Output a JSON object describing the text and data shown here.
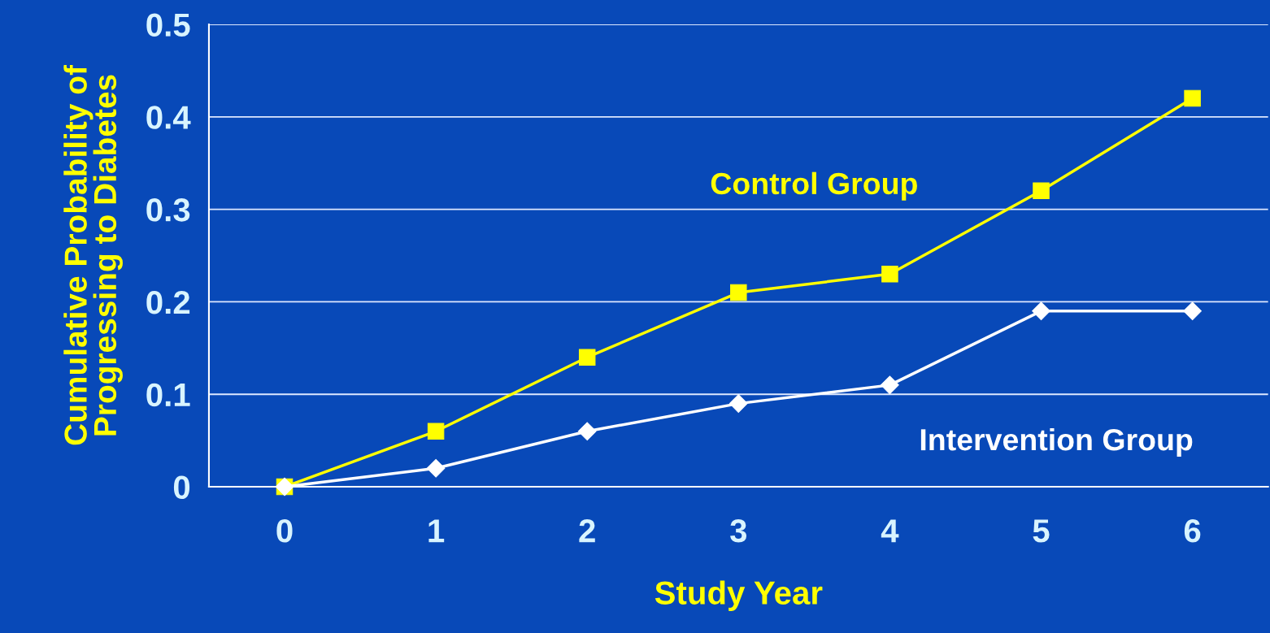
{
  "chart_data": {
    "type": "line",
    "xlabel": "Study Year",
    "ylabel": "Cumulative Probability of\nProgressing to Diabetes",
    "categories": [
      "0",
      "1",
      "2",
      "3",
      "4",
      "5",
      "6"
    ],
    "series": [
      {
        "name": "Control Group",
        "color": "#ffff00",
        "marker": "square",
        "values": [
          0,
          0.06,
          0.14,
          0.21,
          0.23,
          0.32,
          0.42
        ]
      },
      {
        "name": "Intervention Group",
        "color": "#ffffff",
        "marker": "diamond",
        "values": [
          0,
          0.02,
          0.06,
          0.09,
          0.11,
          0.19,
          0.19
        ]
      }
    ],
    "ylim": [
      0,
      0.5
    ],
    "yticks": [
      0,
      0.1,
      0.2,
      0.3,
      0.4,
      0.5
    ],
    "grid": "y",
    "legend": false,
    "line_style": "solid"
  }
}
